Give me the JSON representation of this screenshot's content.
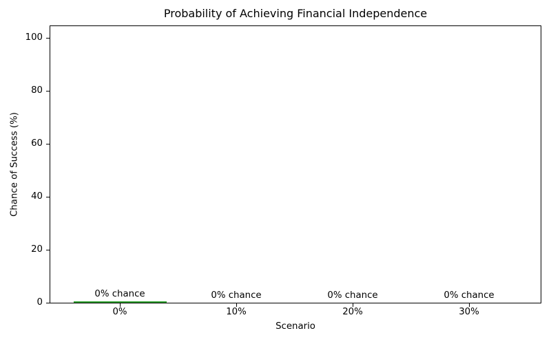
{
  "chart_data": {
    "type": "bar",
    "title": "Probability of Achieving Financial Independence",
    "xlabel": "Scenario",
    "ylabel": "Chance of Success (%)",
    "categories": [
      "0%",
      "10%",
      "20%",
      "30%"
    ],
    "values": [
      0.5,
      0,
      0,
      0
    ],
    "bar_labels": [
      "0% chance",
      "0% chance",
      "0% chance",
      "0% chance"
    ],
    "yticks": [
      0,
      20,
      40,
      60,
      80,
      100
    ],
    "ylim": [
      0,
      105
    ],
    "bar_width_fraction": 0.8,
    "grid": false,
    "legend_position": "none",
    "colors": {
      "bar_color": "#2ca02c",
      "axes_color": "#000000",
      "text_color": "#000000",
      "background": "#ffffff"
    }
  }
}
